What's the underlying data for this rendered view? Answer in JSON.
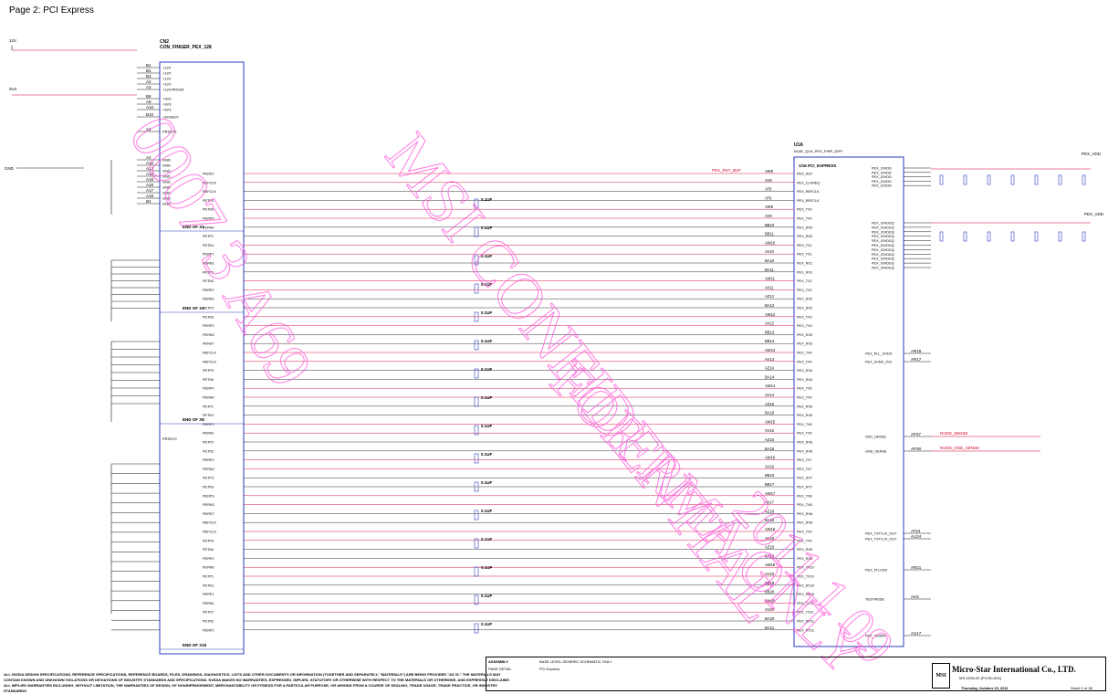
{
  "page": {
    "title": "Page 2: PCI Express"
  },
  "connector": {
    "ref": "CN2",
    "name": "CON_FINGER_PEX_128",
    "left_pins": [
      "B1",
      "B2",
      "B3",
      "A2",
      "A3",
      "B8",
      "A9",
      "A10",
      "B10",
      "A1",
      "A4",
      "A12",
      "A13",
      "A14",
      "A15",
      "A16",
      "A17",
      "A18",
      "B4"
    ],
    "right_labels": [
      "+12V",
      "+12V",
      "+12V",
      "+12V",
      "+12V/PRSNT",
      "+3V3",
      "+3V3",
      "+3V3",
      "+3V3AUX",
      "PRSNT1",
      "GND",
      "GND",
      "GND",
      "GND",
      "GND",
      "GND",
      "GND",
      "GND",
      "GND"
    ],
    "lane_labels": [
      "PERST",
      "REFCLK",
      "REFCLK",
      "PETP0",
      "PETN0",
      "PERP0",
      "PERN0",
      "PETP1",
      "PETN1",
      "PERP1",
      "PERN1",
      "PETP2",
      "PETN2",
      "PERP2",
      "PERN2",
      "PETP3",
      "PETN3",
      "PERP3",
      "PERN3"
    ],
    "end_labels": [
      "END OF X1",
      "END OF X4",
      "END OF X8",
      "END OF X16"
    ],
    "prsnt2": "PRSNT2"
  },
  "gpu": {
    "ref": "U1A",
    "name": "N14E_Q1H_PEX_PWR_DIFF",
    "section": "1/16 PCI_EXPRESS",
    "pins_left": [
      "AW8",
      "AV8",
      "AT8",
      "AT9",
      "AW9",
      "AV9",
      "BB10",
      "BB11",
      "AW10",
      "AV10",
      "BA10",
      "BA11",
      "AW11",
      "AV11",
      "AZ12",
      "BA12",
      "AW12",
      "AV12",
      "BB13",
      "BB14",
      "AW13",
      "AV13",
      "AZ14",
      "BA14",
      "AW14",
      "AV14",
      "AZ15",
      "BA15",
      "AW15",
      "AV15",
      "AZ16",
      "BA16",
      "AW16",
      "AV16",
      "BB16",
      "BB17",
      "AW17",
      "AV17",
      "AZ18",
      "BA18",
      "AW18",
      "AV18",
      "AZ19",
      "BA19",
      "AW19",
      "AV19",
      "BB19",
      "BB20",
      "AW20",
      "AV20",
      "BA20",
      "BA21"
    ],
    "signals_left": [
      "PEX_RST",
      "PEX_CLKREQ",
      "PEX_REFCLK",
      "PEX_REFCLK",
      "PEX_TX0",
      "PEX_TX0",
      "PEX_RX0",
      "PEX_RX0",
      "PEX_TX1",
      "PEX_TX1",
      "PEX_RX1",
      "PEX_RX1",
      "PEX_TX2",
      "PEX_TX2",
      "PEX_RX2",
      "PEX_RX2",
      "PEX_TX3",
      "PEX_TX3",
      "PEX_RX3",
      "PEX_RX3",
      "PEX_TX4",
      "PEX_TX4",
      "PEX_RX4",
      "PEX_RX4",
      "PEX_TX5",
      "PEX_TX5",
      "PEX_RX5",
      "PEX_RX5",
      "PEX_TX6",
      "PEX_TX6",
      "PEX_RX6",
      "PEX_RX6",
      "PEX_TX7",
      "PEX_TX7",
      "PEX_RX7",
      "PEX_RX7",
      "PEX_TX8",
      "PEX_TX8",
      "PEX_RX8",
      "PEX_RX8",
      "PEX_TX9",
      "PEX_TX9",
      "PEX_RX9",
      "PEX_RX9",
      "PEX_TX10",
      "PEX_TX10",
      "PEX_RX10",
      "PEX_RX10",
      "PEX_TX11",
      "PEX_TX11",
      "PEX_RX11",
      "PEX_RX11"
    ],
    "right_power": [
      "PEX_IOVDD",
      "PEX_IOVDD",
      "PEX_IOVDD",
      "PEX_IOVDD",
      "PEX_IOVDD",
      "PEX_IOVDDQ",
      "PEX_IOVDDQ",
      "PEX_IOVDDQ",
      "PEX_IOVDDQ",
      "PEX_IOVDDQ",
      "PEX_IOVDDQ",
      "PEX_IOVDDQ",
      "PEX_IOVDDQ",
      "PEX_IOVDDQ",
      "PEX_IOVDDQ",
      "PEX_IOVDDQ"
    ],
    "right_misc": [
      "PEX_PLL_HVDD",
      "PEX_SVDD_3V3",
      "VDD_SENSE",
      "GND_SENSE",
      "PEX_TSTCLK_OUT",
      "PEX_TSTCLK_OUT",
      "PEX_PLLVDD",
      "TESTMODE",
      "PEX_TERMP"
    ],
    "right_misc_pins": [
      "AR18",
      "AR17",
      "AP37",
      "AP38",
      "AT24",
      "AU24",
      "AR21",
      "AH3",
      "AU17"
    ]
  },
  "nets": {
    "rst": "PEX_RST_BUF",
    "vdd_sense": "NVDD_SENSE",
    "gnd_sense": "NVDD_GND_SENSE",
    "pex_vdd": "PEX_VDD",
    "v12": "12V",
    "v3": "3V3",
    "gnd": "GND"
  },
  "caps": [
    "0.1UF",
    "0.1UF",
    "0.1UF",
    "0.1UF",
    "0.1UF",
    "0.1UF",
    "0.1UF",
    "0.1UF",
    "0.1UF",
    "0.1UF",
    "0.1UF",
    "0.1UF",
    "0.1UF",
    "0.1UF",
    "0.1UF",
    "0.1UF"
  ],
  "title_block": {
    "assembly_label": "ASSEMBLY",
    "assembly_value": "BASE LEVEL GENERIC SCHEMATIC ONLY",
    "detail_label": "PAGE DETAIL",
    "detail_value": "PCI Express",
    "company": "Micro-Star International Co., LTD.",
    "part": "MS-V336-00 (P1230-A01)",
    "date": "Thursday, October 20, 2011",
    "sheet": "Sheet 2 of 38",
    "logo": "MSI"
  },
  "disclaimer": "ALL NVIDIA DESIGN SPECIFICATIONS, REFERENCE SPECIFICATIONS, REFERENCE BOARDS, FILES, DRAWINGS, DIAGNOSTICS, LISTS AND OTHER DOCUMENTS OR INFORMATION (TOGETHER AND SEPARATELY, \"MATERIALS\") ARE BEING PROVIDED \"AS IS.\" THE MATERIALS MAY CONTAIN KNOWN AND UNKNOWN VIOLATIONS OR DEVIATIONS OF INDUSTRY STANDARDS AND SPECIFICATIONS. NVIDIA MAKES NO WARRANTIES, EXPRESSED, IMPLIED, STATUTORY OR OTHERWISE WITH RESPECT TO THE MATERIALS OR OTHERWISE, AND EXPRESSLY DISCLAIMS ALL IMPLIED WARRANTIES INCLUDING, WITHOUT LIMITATION, THE WARRANTIES OF DESIGN, OF NONINFRINGEMENT, MERCHANTABILITY OR FITNESS FOR A PARTICULAR PURPOSE, OR ARISING FROM A COURSE OF DEALING, TRADE USAGE, TRADE PRACTICE, OR INDUSTRY STANDARDS.",
  "watermark": [
    "0007 3 A69",
    "MSI CONFIDENTIAL",
    "FOR RMA ONLY",
    "2011 1 09"
  ]
}
